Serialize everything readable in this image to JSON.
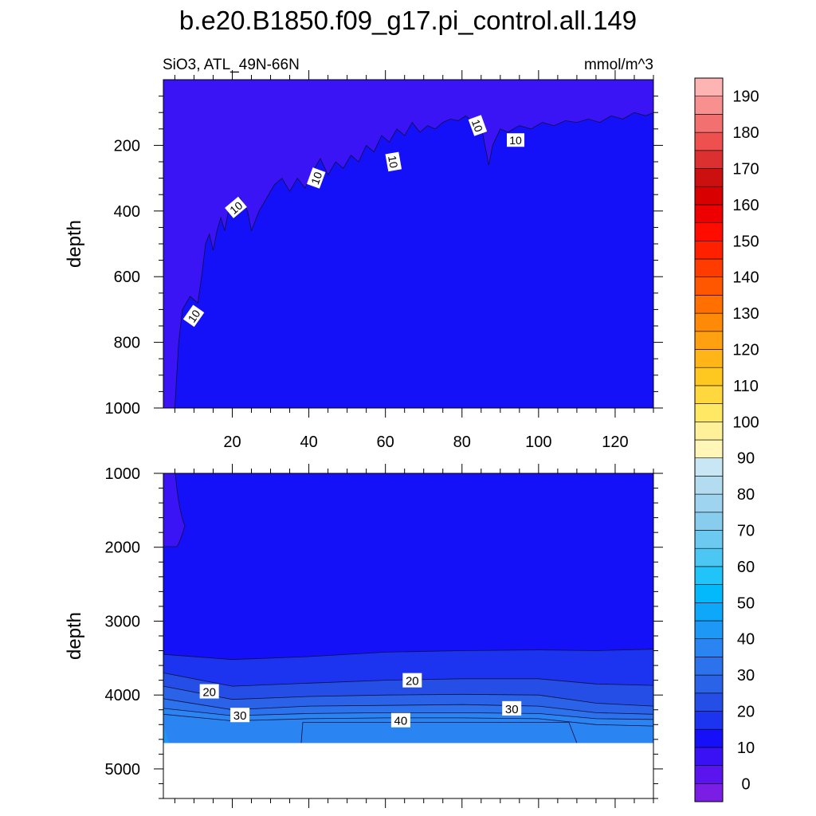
{
  "title": "b.e20.B1850.f09_g17.pi_control.all.149",
  "subtitle_left": "SiO3, ATL_49N-66N",
  "subtitle_right": "mmol/m^3",
  "chart_data": [
    {
      "type": "contour",
      "panel": "upper",
      "ylabel": "depth",
      "xlim": [
        2,
        130
      ],
      "ylim": [
        1000,
        0
      ],
      "x_ticks": [
        20,
        40,
        60,
        80,
        100,
        120
      ],
      "y_ticks": [
        200,
        400,
        600,
        800,
        1000
      ],
      "contour_labels": [
        "10",
        "10",
        "10",
        "10",
        "10",
        "10"
      ],
      "contour_10_depth_profile": [
        [
          5,
          1000
        ],
        [
          6,
          800
        ],
        [
          7,
          700
        ],
        [
          9,
          660
        ],
        [
          11,
          680
        ],
        [
          12,
          600
        ],
        [
          13,
          500
        ],
        [
          14,
          470
        ],
        [
          15,
          520
        ],
        [
          16,
          460
        ],
        [
          17,
          420
        ],
        [
          18,
          460
        ],
        [
          19,
          400
        ],
        [
          20,
          380
        ],
        [
          22,
          360
        ],
        [
          24,
          400
        ],
        [
          25,
          460
        ],
        [
          27,
          400
        ],
        [
          29,
          360
        ],
        [
          31,
          320
        ],
        [
          33,
          300
        ],
        [
          35,
          340
        ],
        [
          37,
          300
        ],
        [
          39,
          330
        ],
        [
          41,
          280
        ],
        [
          43,
          240
        ],
        [
          45,
          290
        ],
        [
          47,
          250
        ],
        [
          49,
          270
        ],
        [
          51,
          230
        ],
        [
          53,
          250
        ],
        [
          55,
          200
        ],
        [
          57,
          220
        ],
        [
          59,
          170
        ],
        [
          61,
          190
        ],
        [
          63,
          150
        ],
        [
          65,
          170
        ],
        [
          67,
          130
        ],
        [
          69,
          160
        ],
        [
          71,
          140
        ],
        [
          73,
          150
        ],
        [
          75,
          130
        ],
        [
          77,
          120
        ],
        [
          79,
          125
        ],
        [
          81,
          110
        ],
        [
          83,
          130
        ],
        [
          85,
          140
        ],
        [
          86,
          200
        ],
        [
          87,
          260
        ],
        [
          88,
          200
        ],
        [
          90,
          150
        ],
        [
          92,
          160
        ],
        [
          95,
          140
        ],
        [
          98,
          150
        ],
        [
          101,
          130
        ],
        [
          104,
          140
        ],
        [
          107,
          125
        ],
        [
          110,
          130
        ],
        [
          113,
          120
        ],
        [
          116,
          130
        ],
        [
          119,
          110
        ],
        [
          122,
          120
        ],
        [
          125,
          100
        ],
        [
          128,
          110
        ],
        [
          130,
          100
        ]
      ],
      "regions": [
        {
          "range": "0-10",
          "color": "#3a14f5"
        },
        {
          "range": "10-20",
          "color": "#1410f8"
        }
      ]
    },
    {
      "type": "contour",
      "panel": "lower",
      "ylabel": "depth",
      "xlim": [
        2,
        130
      ],
      "ylim": [
        5400,
        1000
      ],
      "y_ticks": [
        1000,
        2000,
        3000,
        4000,
        5000
      ],
      "bottom_topography_depth": 4650,
      "contour_labels": [
        "20",
        "20",
        "30",
        "30",
        "40"
      ],
      "contours": [
        {
          "level": 10,
          "depth": [
            [
              2,
              3450
            ],
            [
              20,
              3520
            ],
            [
              40,
              3480
            ],
            [
              60,
              3420
            ],
            [
              80,
              3400
            ],
            [
              100,
              3390
            ],
            [
              115,
              3400
            ],
            [
              130,
              3380
            ]
          ]
        },
        {
          "level": 15,
          "depth": [
            [
              2,
              3700
            ],
            [
              20,
              3880
            ],
            [
              40,
              3840
            ],
            [
              60,
              3800
            ],
            [
              80,
              3780
            ],
            [
              100,
              3780
            ],
            [
              115,
              3850
            ],
            [
              130,
              3870
            ]
          ]
        },
        {
          "level": 20,
          "depth": [
            [
              2,
              3880
            ],
            [
              20,
              4060
            ],
            [
              40,
              4020
            ],
            [
              60,
              4000
            ],
            [
              80,
              3990
            ],
            [
              100,
              4000
            ],
            [
              115,
              4110
            ],
            [
              130,
              4150
            ]
          ]
        },
        {
          "level": 25,
          "depth": [
            [
              2,
              4050
            ],
            [
              20,
              4200
            ],
            [
              40,
              4150
            ],
            [
              60,
              4140
            ],
            [
              80,
              4130
            ],
            [
              100,
              4150
            ],
            [
              115,
              4240
            ],
            [
              130,
              4260
            ]
          ]
        },
        {
          "level": 30,
          "depth": [
            [
              2,
              4180
            ],
            [
              20,
              4280
            ],
            [
              40,
              4250
            ],
            [
              60,
              4240
            ],
            [
              80,
              4240
            ],
            [
              100,
              4250
            ],
            [
              115,
              4320
            ],
            [
              130,
              4330
            ]
          ]
        },
        {
          "level": 35,
          "depth": [
            [
              2,
              4260
            ],
            [
              20,
              4350
            ],
            [
              40,
              4320
            ],
            [
              60,
              4310
            ],
            [
              80,
              4310
            ],
            [
              100,
              4320
            ],
            [
              115,
              4400
            ],
            [
              130,
              4420
            ]
          ]
        }
      ],
      "contour_40_box": {
        "x": [
          38,
          110
        ],
        "top_depth": 4370
      },
      "regions": [
        {
          "range": "10-20",
          "color": "#1410f8"
        },
        {
          "range": "20-25",
          "color": "#1c34f0"
        },
        {
          "range": "25-30",
          "color": "#244ee6"
        },
        {
          "range": "30-35",
          "color": "#2a62e8"
        },
        {
          "range": "35-40",
          "color": "#2c72ec"
        },
        {
          "range": "40-45",
          "color": "#2a84f2"
        }
      ]
    }
  ],
  "colorbar": {
    "tick_labels": [
      "0",
      "10",
      "20",
      "30",
      "40",
      "50",
      "60",
      "70",
      "80",
      "90",
      "100",
      "110",
      "120",
      "130",
      "140",
      "150",
      "160",
      "170",
      "180",
      "190"
    ],
    "colors": [
      "#7a1ee6",
      "#5a14ee",
      "#3a10f4",
      "#1610f8",
      "#1c34f0",
      "#244ee6",
      "#2a62e8",
      "#2c72ec",
      "#2a84f2",
      "#1e98f6",
      "#0ea8fa",
      "#04b8fc",
      "#20c4f8",
      "#4cc6f2",
      "#6ccaf0",
      "#88ccee",
      "#9ed4f0",
      "#b4dcf0",
      "#c8e6f4",
      "#fff6b8",
      "#fff09a",
      "#ffe864",
      "#ffd840",
      "#ffc820",
      "#ffb418",
      "#ffa010",
      "#ff8a08",
      "#ff7000",
      "#ff5600",
      "#ff3c00",
      "#ff2000",
      "#ff0c00",
      "#ee0000",
      "#d80000",
      "#cc1010",
      "#dc3030",
      "#ee5050",
      "#f27070",
      "#f89090",
      "#ffb4b4"
    ]
  }
}
